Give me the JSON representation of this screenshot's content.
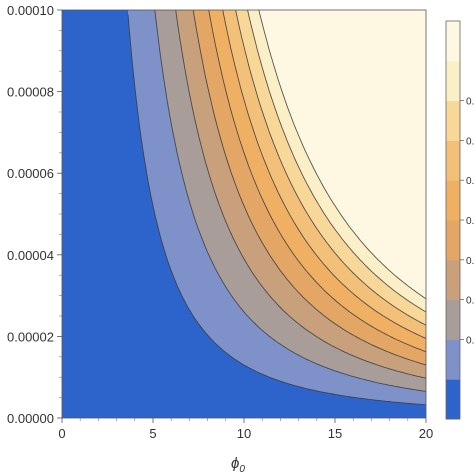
{
  "chart_data": {
    "type": "contour",
    "title": "",
    "xlabel": "ϕ",
    "xlabel_subscript": "0",
    "ylabel": "",
    "xlim": [
      0,
      20
    ],
    "ylim": [
      0,
      0.0001
    ],
    "x_ticks": [
      {
        "value": 0,
        "label": "0"
      },
      {
        "value": 5,
        "label": "5"
      },
      {
        "value": 10,
        "label": "10"
      },
      {
        "value": 15,
        "label": "15"
      },
      {
        "value": 20,
        "label": "20"
      }
    ],
    "y_ticks": [
      {
        "value": 0,
        "label": "0.00000"
      },
      {
        "value": 2e-05,
        "label": "0.00002"
      },
      {
        "value": 4e-05,
        "label": "0.00004"
      },
      {
        "value": 6e-05,
        "label": "0.00006"
      },
      {
        "value": 8e-05,
        "label": "0.00008"
      },
      {
        "value": 0.0001,
        "label": "0.00010"
      }
    ],
    "contour_levels": [
      0.0013,
      0.0026,
      0.0039,
      0.0052,
      0.0065,
      0.0078,
      0.0091,
      0.0104,
      0.0117
    ],
    "level_colors": [
      "#2c64cc",
      "#7f91c9",
      "#a99d99",
      "#c8a07c",
      "#e3a665",
      "#f0b063",
      "#f3c07a",
      "#f8d898",
      "#fbefc8",
      "#fef8e2"
    ],
    "colorbar_labels": [
      "0.",
      "0.",
      "0.",
      "0.",
      "0.",
      "0.",
      "0."
    ],
    "legend_position": "right",
    "grid": false
  }
}
